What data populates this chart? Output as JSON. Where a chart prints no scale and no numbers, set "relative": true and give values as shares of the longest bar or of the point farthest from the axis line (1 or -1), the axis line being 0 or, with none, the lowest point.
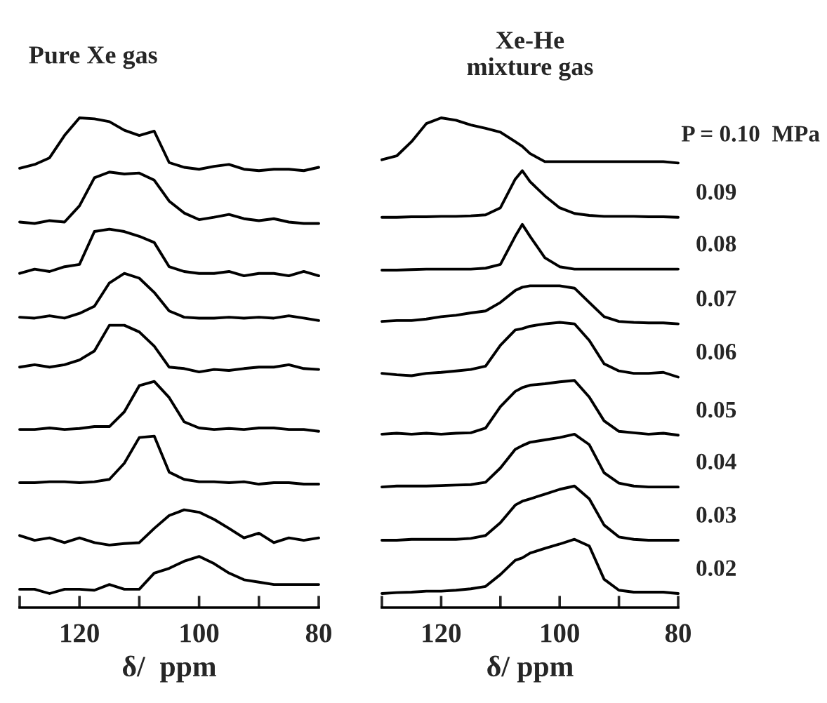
{
  "chart_data": [
    {
      "type": "line",
      "title": "Pure Xe gas",
      "xlabel": "δ/  ppm",
      "relative": true,
      "tick_labels": "x",
      "xlim": [
        130,
        80
      ],
      "xticks": [
        {
          "value": 130,
          "label": null
        },
        120,
        {
          "value": 110,
          "label": null
        },
        100,
        {
          "value": 90,
          "label": null
        },
        80
      ],
      "x": [
        130,
        127.5,
        125,
        122.5,
        120,
        117.5,
        115,
        112.5,
        110,
        107.5,
        105,
        102.5,
        100,
        97.5,
        95,
        92.5,
        90,
        87.5,
        85,
        82.5,
        80
      ],
      "series": [
        {
          "color": "#000000",
          "values": [
            0.894,
            0.902,
            0.916,
            0.963,
            1.0,
            0.998,
            0.992,
            0.974,
            0.963,
            0.972,
            0.906,
            0.896,
            0.892,
            0.898,
            0.902,
            0.892,
            0.889,
            0.892,
            0.892,
            0.889,
            0.896
          ]
        },
        {
          "color": "#000000",
          "values": [
            0.781,
            0.778,
            0.784,
            0.781,
            0.815,
            0.874,
            0.886,
            0.882,
            0.884,
            0.869,
            0.825,
            0.8,
            0.786,
            0.791,
            0.797,
            0.788,
            0.784,
            0.788,
            0.781,
            0.778,
            0.778
          ]
        },
        {
          "color": "#000000",
          "values": [
            0.673,
            0.682,
            0.677,
            0.687,
            0.692,
            0.761,
            0.766,
            0.761,
            0.751,
            0.738,
            0.687,
            0.677,
            0.673,
            0.673,
            0.677,
            0.668,
            0.673,
            0.673,
            0.668,
            0.677,
            0.668
          ]
        },
        {
          "color": "#000000",
          "values": [
            0.581,
            0.579,
            0.584,
            0.579,
            0.589,
            0.604,
            0.653,
            0.673,
            0.663,
            0.633,
            0.594,
            0.581,
            0.579,
            0.579,
            0.581,
            0.579,
            0.581,
            0.579,
            0.584,
            0.579,
            0.574
          ]
        },
        {
          "color": "#000000",
          "values": [
            0.476,
            0.481,
            0.476,
            0.481,
            0.491,
            0.51,
            0.564,
            0.564,
            0.55,
            0.52,
            0.476,
            0.473,
            0.466,
            0.471,
            0.469,
            0.473,
            0.476,
            0.476,
            0.481,
            0.473,
            0.471
          ]
        },
        {
          "color": "#000000",
          "values": [
            0.345,
            0.345,
            0.348,
            0.345,
            0.347,
            0.351,
            0.351,
            0.382,
            0.437,
            0.446,
            0.412,
            0.361,
            0.348,
            0.345,
            0.347,
            0.345,
            0.348,
            0.348,
            0.345,
            0.345,
            0.341
          ]
        },
        {
          "color": "#000000",
          "values": [
            0.233,
            0.233,
            0.235,
            0.235,
            0.233,
            0.235,
            0.24,
            0.274,
            0.328,
            0.331,
            0.255,
            0.24,
            0.235,
            0.235,
            0.233,
            0.235,
            0.23,
            0.233,
            0.233,
            0.23,
            0.23
          ]
        },
        {
          "color": "#000000",
          "values": [
            0.122,
            0.112,
            0.117,
            0.107,
            0.117,
            0.107,
            0.102,
            0.105,
            0.107,
            0.137,
            0.164,
            0.176,
            0.171,
            0.156,
            0.137,
            0.117,
            0.127,
            0.107,
            0.117,
            0.112,
            0.117
          ]
        },
        {
          "color": "#000000",
          "values": [
            0.009,
            0.009,
            0.0,
            0.009,
            0.009,
            0.007,
            0.019,
            0.009,
            0.009,
            0.043,
            0.053,
            0.068,
            0.078,
            0.063,
            0.043,
            0.029,
            0.024,
            0.019,
            0.019,
            0.019,
            0.019
          ]
        }
      ]
    },
    {
      "type": "line",
      "title": "Xe-He\nmixture gas",
      "xlabel": "δ/ ppm",
      "relative": true,
      "tick_labels": "x",
      "xlim": [
        130,
        80
      ],
      "xticks": [
        {
          "value": 130,
          "label": null
        },
        120,
        {
          "value": 110,
          "label": null
        },
        100,
        {
          "value": 90,
          "label": null
        },
        80
      ],
      "x": [
        130,
        127.5,
        125,
        122.5,
        120,
        117.5,
        115,
        112.5,
        110,
        107.5,
        106.3,
        105,
        102.5,
        100,
        97.5,
        95,
        92.5,
        90,
        87.5,
        85,
        82.5,
        80
      ],
      "series": [
        {
          "name": "P = 0.10  MPa",
          "color": "#000000",
          "values": [
            0.912,
            0.92,
            0.95,
            0.988,
            1.0,
            0.995,
            0.985,
            0.978,
            0.97,
            0.95,
            0.94,
            0.925,
            0.908,
            0.908,
            0.908,
            0.908,
            0.908,
            0.908,
            0.908,
            0.908,
            0.908,
            0.905
          ]
        },
        {
          "name": "0.09",
          "color": "#000000",
          "values": [
            0.791,
            0.791,
            0.792,
            0.792,
            0.793,
            0.793,
            0.794,
            0.796,
            0.811,
            0.871,
            0.889,
            0.866,
            0.836,
            0.811,
            0.799,
            0.795,
            0.793,
            0.793,
            0.793,
            0.792,
            0.792,
            0.791
          ]
        },
        {
          "name": "0.08",
          "color": "#000000",
          "values": [
            0.68,
            0.68,
            0.681,
            0.682,
            0.682,
            0.682,
            0.682,
            0.684,
            0.692,
            0.751,
            0.776,
            0.751,
            0.706,
            0.687,
            0.682,
            0.682,
            0.682,
            0.682,
            0.682,
            0.682,
            0.682,
            0.682
          ]
        },
        {
          "name": "0.07",
          "color": "#000000",
          "values": [
            0.572,
            0.574,
            0.574,
            0.577,
            0.582,
            0.585,
            0.59,
            0.594,
            0.612,
            0.637,
            0.644,
            0.647,
            0.647,
            0.647,
            0.642,
            0.612,
            0.582,
            0.572,
            0.57,
            0.569,
            0.569,
            0.567
          ]
        },
        {
          "name": "0.06",
          "color": "#000000",
          "values": [
            0.463,
            0.46,
            0.458,
            0.463,
            0.465,
            0.468,
            0.471,
            0.478,
            0.522,
            0.554,
            0.557,
            0.562,
            0.567,
            0.57,
            0.567,
            0.532,
            0.483,
            0.468,
            0.463,
            0.463,
            0.465,
            0.455
          ]
        },
        {
          "name": "0.05",
          "color": "#000000",
          "values": [
            0.335,
            0.337,
            0.335,
            0.337,
            0.335,
            0.337,
            0.338,
            0.348,
            0.393,
            0.425,
            0.433,
            0.438,
            0.441,
            0.445,
            0.448,
            0.413,
            0.363,
            0.341,
            0.338,
            0.335,
            0.337,
            0.333
          ]
        },
        {
          "name": "0.04",
          "color": "#000000",
          "values": [
            0.224,
            0.226,
            0.226,
            0.226,
            0.227,
            0.228,
            0.229,
            0.234,
            0.264,
            0.303,
            0.311,
            0.318,
            0.323,
            0.328,
            0.335,
            0.313,
            0.254,
            0.232,
            0.226,
            0.224,
            0.224,
            0.224
          ]
        },
        {
          "name": "0.03",
          "color": "#000000",
          "values": [
            0.112,
            0.112,
            0.114,
            0.114,
            0.114,
            0.114,
            0.116,
            0.122,
            0.149,
            0.186,
            0.194,
            0.199,
            0.209,
            0.219,
            0.226,
            0.199,
            0.144,
            0.119,
            0.114,
            0.112,
            0.112,
            0.112
          ]
        },
        {
          "name": "0.02",
          "color": "#000000",
          "values": [
            0.0,
            0.002,
            0.003,
            0.005,
            0.005,
            0.007,
            0.01,
            0.015,
            0.04,
            0.07,
            0.075,
            0.085,
            0.095,
            0.104,
            0.114,
            0.1,
            0.03,
            0.007,
            0.003,
            0.003,
            0.003,
            0.0
          ]
        }
      ]
    }
  ]
}
